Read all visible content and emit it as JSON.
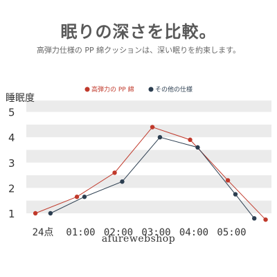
{
  "header": {
    "title": "眠りの深さを比較。",
    "subtitle": "高弾力仕様の PP 綿クッションは、深い眠りを約束します。"
  },
  "watermark": "afurewebshop",
  "chart_data": {
    "type": "line",
    "ylabel": "睡眠度",
    "xlabel": "",
    "title": "",
    "ylim": [
      1,
      5
    ],
    "yticks": [
      1,
      2,
      3,
      4,
      5
    ],
    "grid": "horizontal bands",
    "legend_position": "top",
    "x_ticks": [
      "24点",
      "01:00",
      "02:00",
      "03:00",
      "04:00",
      "05:00"
    ],
    "x": [
      0,
      0.5,
      1,
      1.5,
      2,
      2.5,
      3,
      3.5,
      4,
      4.5,
      5,
      5.5
    ],
    "series": [
      {
        "name": "高弾力の PP 綿",
        "color": "#c0392b",
        "x": [
          -0.2,
          0.9,
          1.9,
          2.9,
          3.9,
          4.9,
          5.9
        ],
        "values": [
          1.0,
          1.65,
          2.6,
          4.4,
          3.9,
          2.3,
          0.75
        ]
      },
      {
        "name": "その他の仕様",
        "color": "#2c3e50",
        "x": [
          0.2,
          1.1,
          2.1,
          3.1,
          4.1,
          5.1,
          5.6
        ],
        "values": [
          1.0,
          1.65,
          2.25,
          4.0,
          3.6,
          1.75,
          0.8
        ]
      }
    ]
  }
}
